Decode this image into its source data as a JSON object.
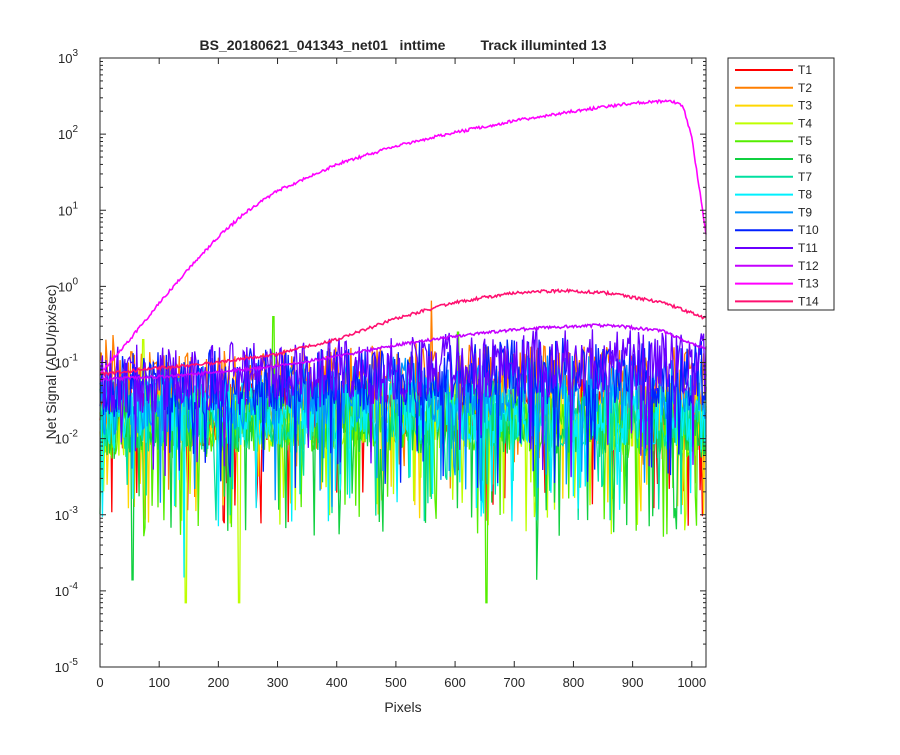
{
  "chart_data": {
    "type": "line",
    "title": "BS_20180621_041343_net01   inttime         Track illuminted 13",
    "xlabel": "Pixels",
    "ylabel": "Net Signal (ADU/pix/sec)",
    "xlim": [
      0,
      1024
    ],
    "ylim": [
      1e-05,
      1000
    ],
    "yscale": "log",
    "grid": false,
    "legend_position": "outside-top-right",
    "x_ticks": [
      0,
      100,
      200,
      300,
      400,
      500,
      600,
      700,
      800,
      900,
      1000
    ],
    "y_ticks": [
      {
        "value": 1e-05,
        "base": "10",
        "exp": "-5"
      },
      {
        "value": 0.0001,
        "base": "10",
        "exp": "-4"
      },
      {
        "value": 0.001,
        "base": "10",
        "exp": "-3"
      },
      {
        "value": 0.01,
        "base": "10",
        "exp": "-2"
      },
      {
        "value": 0.1,
        "base": "10",
        "exp": "-1"
      },
      {
        "value": 1,
        "base": "10",
        "exp": "0"
      },
      {
        "value": 10,
        "base": "10",
        "exp": "1"
      },
      {
        "value": 100,
        "base": "10",
        "exp": "2"
      },
      {
        "value": 1000,
        "base": "10",
        "exp": "3"
      }
    ],
    "series": [
      {
        "name": "T1",
        "color": "#ff0000",
        "profile": "noise",
        "x": [
          0,
          200,
          400,
          600,
          800,
          1024
        ],
        "y": [
          0.02,
          0.022,
          0.025,
          0.025,
          0.022,
          0.02
        ]
      },
      {
        "name": "T2",
        "color": "#ff7f00",
        "profile": "noise",
        "x": [
          0,
          200,
          400,
          600,
          800,
          1024
        ],
        "y": [
          0.05,
          0.05,
          0.06,
          0.065,
          0.06,
          0.055
        ],
        "spikes": [
          [
            10,
            0.2
          ],
          [
            22,
            0.23
          ],
          [
            560,
            0.65
          ]
        ]
      },
      {
        "name": "T3",
        "color": "#ffd700",
        "profile": "noise",
        "x": [
          0,
          200,
          400,
          600,
          800,
          1024
        ],
        "y": [
          0.02,
          0.022,
          0.025,
          0.025,
          0.022,
          0.02
        ]
      },
      {
        "name": "T4",
        "color": "#bfff00",
        "profile": "noise",
        "x": [
          0,
          200,
          400,
          600,
          800,
          1024
        ],
        "y": [
          0.015,
          0.018,
          0.02,
          0.02,
          0.018,
          0.015
        ],
        "spikes": [
          [
            145,
            7e-05
          ],
          [
            235,
            7e-05
          ],
          [
            73,
            0.2
          ]
        ]
      },
      {
        "name": "T5",
        "color": "#55ee00",
        "profile": "noise",
        "x": [
          0,
          200,
          400,
          600,
          800,
          1024
        ],
        "y": [
          0.015,
          0.016,
          0.018,
          0.018,
          0.016,
          0.015
        ],
        "spikes": [
          [
            653,
            7e-05
          ],
          [
            293,
            0.4
          ],
          [
            605,
            0.25
          ]
        ]
      },
      {
        "name": "T6",
        "color": "#10d040",
        "profile": "noise",
        "x": [
          0,
          200,
          400,
          600,
          800,
          1024
        ],
        "y": [
          0.015,
          0.016,
          0.017,
          0.017,
          0.016,
          0.015
        ],
        "spikes": [
          [
            55,
            0.00014
          ],
          [
            738,
            0.00014
          ]
        ]
      },
      {
        "name": "T7",
        "color": "#00e0a0",
        "profile": "noise",
        "x": [
          0,
          200,
          400,
          600,
          800,
          1024
        ],
        "y": [
          0.018,
          0.02,
          0.022,
          0.022,
          0.02,
          0.018
        ]
      },
      {
        "name": "T8",
        "color": "#00f0ff",
        "profile": "noise",
        "x": [
          0,
          200,
          400,
          600,
          800,
          1024
        ],
        "y": [
          0.02,
          0.022,
          0.024,
          0.024,
          0.022,
          0.02
        ],
        "spikes": [
          [
            142,
            0.00015
          ]
        ]
      },
      {
        "name": "T9",
        "color": "#0095ff",
        "profile": "noise",
        "x": [
          0,
          200,
          400,
          600,
          800,
          1024
        ],
        "y": [
          0.03,
          0.035,
          0.04,
          0.045,
          0.045,
          0.04
        ]
      },
      {
        "name": "T10",
        "color": "#0020ff",
        "profile": "noise",
        "x": [
          0,
          200,
          400,
          600,
          800,
          1024
        ],
        "y": [
          0.05,
          0.055,
          0.06,
          0.07,
          0.075,
          0.07
        ]
      },
      {
        "name": "T11",
        "color": "#6a00ff",
        "profile": "noise",
        "x": [
          0,
          200,
          400,
          600,
          800,
          1024
        ],
        "y": [
          0.06,
          0.065,
          0.075,
          0.09,
          0.1,
          0.09
        ]
      },
      {
        "name": "T12",
        "color": "#c400ff",
        "profile": "smooth",
        "x": [
          0,
          100,
          200,
          300,
          400,
          500,
          600,
          700,
          800,
          860,
          950,
          1024
        ],
        "y": [
          0.06,
          0.065,
          0.075,
          0.09,
          0.12,
          0.17,
          0.22,
          0.27,
          0.3,
          0.31,
          0.26,
          0.15
        ]
      },
      {
        "name": "T13",
        "color": "#ff00ff",
        "profile": "smooth",
        "x": [
          0,
          25,
          50,
          100,
          150,
          200,
          250,
          300,
          400,
          500,
          600,
          700,
          800,
          900,
          960,
          985,
          1000,
          1024
        ],
        "y": [
          0.07,
          0.12,
          0.2,
          0.6,
          1.7,
          4.5,
          10,
          18,
          40,
          70,
          105,
          150,
          200,
          255,
          275,
          240,
          90,
          5
        ]
      },
      {
        "name": "T14",
        "color": "#ff1070",
        "profile": "smooth",
        "x": [
          0,
          100,
          200,
          300,
          400,
          500,
          600,
          700,
          780,
          850,
          950,
          1024
        ],
        "y": [
          0.07,
          0.085,
          0.1,
          0.13,
          0.2,
          0.38,
          0.62,
          0.82,
          0.88,
          0.83,
          0.62,
          0.38
        ]
      }
    ]
  }
}
